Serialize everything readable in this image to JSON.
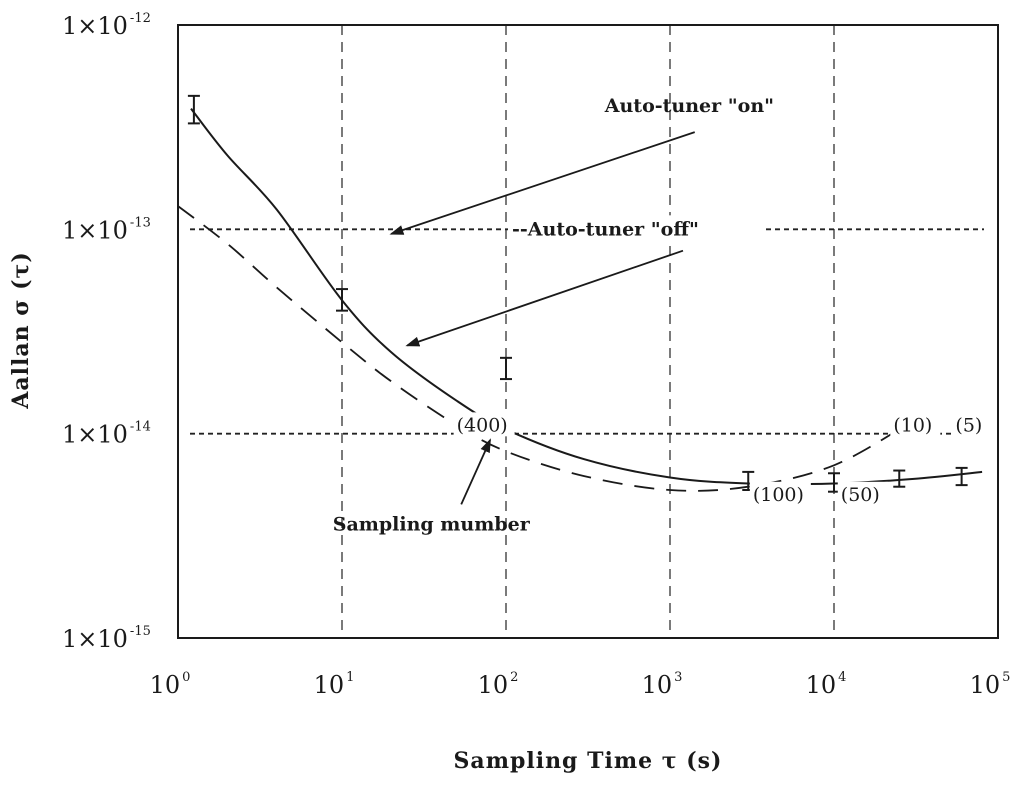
{
  "chart_data": {
    "type": "line",
    "title": "",
    "xlabel": "Sampling Time  τ (s)",
    "ylabel": "Aallan σ (τ)",
    "x_scale": "log",
    "y_scale": "log",
    "xlim": [
      1,
      100000
    ],
    "ylim": [
      1e-15,
      1e-12
    ],
    "x_ticks": [
      {
        "value": 1,
        "mant": "10",
        "exp": "0"
      },
      {
        "value": 10,
        "mant": "10",
        "exp": "1"
      },
      {
        "value": 100,
        "mant": "10",
        "exp": "2"
      },
      {
        "value": 1000,
        "mant": "10",
        "exp": "3"
      },
      {
        "value": 10000,
        "mant": "10",
        "exp": "4"
      },
      {
        "value": 100000,
        "mant": "10",
        "exp": "5"
      }
    ],
    "y_ticks": [
      {
        "value": 1e-12,
        "mant": "1×10",
        "exp": "-12"
      },
      {
        "value": 1e-13,
        "mant": "1×10",
        "exp": "-13"
      },
      {
        "value": 1e-14,
        "mant": "1×10",
        "exp": "-14"
      },
      {
        "value": 1e-15,
        "mant": "1×10",
        "exp": "-15"
      }
    ],
    "vertical_grid_x": [
      10,
      100,
      1000,
      10000
    ],
    "horizontal_ref_y": [
      1e-13,
      1e-14
    ],
    "series": [
      {
        "style": "solid",
        "x": [
          1.2,
          2,
          4,
          10,
          20,
          50,
          100,
          300,
          1000,
          3000,
          10000,
          30000,
          80000
        ],
        "y": [
          3.9e-13,
          2.3e-13,
          1.25e-13,
          4.5e-14,
          2.5e-14,
          1.45e-14,
          1.05e-14,
          7.5e-15,
          6.1e-15,
          5.7e-15,
          5.7e-15,
          6e-15,
          6.5e-15
        ]
      },
      {
        "style": "dashed",
        "x": [
          1,
          2,
          4,
          10,
          20,
          50,
          100,
          300,
          1000,
          3000,
          10000,
          30000
        ],
        "y": [
          1.3e-13,
          8.5e-14,
          5.2e-14,
          2.8e-14,
          1.8e-14,
          1.1e-14,
          8.2e-15,
          6.2e-15,
          5.3e-15,
          5.5e-15,
          7e-15,
          1.15e-14
        ]
      }
    ],
    "error_bars": [
      {
        "x": 1.25,
        "y": 3.9e-13,
        "lo": 3.3e-13,
        "hi": 4.5e-13
      },
      {
        "x": 10,
        "y": 4.5e-14,
        "lo": 4e-14,
        "hi": 5.1e-14
      },
      {
        "x": 100,
        "y": 2.1e-14,
        "lo": 1.85e-14,
        "hi": 2.35e-14
      },
      {
        "x": 3000,
        "y": 5.9e-15,
        "lo": 5.3e-15,
        "hi": 6.5e-15
      },
      {
        "x": 10000,
        "y": 5.8e-15,
        "lo": 5.2e-15,
        "hi": 6.4e-15
      },
      {
        "x": 25000,
        "y": 6e-15,
        "lo": 5.5e-15,
        "hi": 6.6e-15
      },
      {
        "x": 60000,
        "y": 6.2e-15,
        "lo": 5.6e-15,
        "hi": 6.8e-15
      }
    ],
    "annotations": [
      {
        "text": "Auto-tuner \"on\"",
        "x": 400,
        "y": 3.5e-13,
        "arrow_to": {
          "x": 20,
          "y": 9.5e-14
        }
      },
      {
        "text": "--Auto-tuner \"off\"",
        "x": 100,
        "y": 1e-13,
        "arrow_from": {
          "x": 1200,
          "y": 9e-14
        },
        "arrow_to": {
          "x": 25,
          "y": 2.7e-14
        }
      },
      {
        "text": "Sampling mumber",
        "x": 35,
        "y": 3.6e-15,
        "arrow_to": {
          "x": 80,
          "y": 9.3e-15
        }
      }
    ],
    "sample_labels": [
      {
        "text": "(400)",
        "x": 50,
        "y": 1.05e-14
      },
      {
        "text": "(100)",
        "x": 3200,
        "y": 4.8e-15
      },
      {
        "text": "(50)",
        "x": 11000,
        "y": 4.8e-15
      },
      {
        "text": "(10)",
        "x": 23000,
        "y": 1.05e-14
      },
      {
        "text": "(5)",
        "x": 55000,
        "y": 1.05e-14
      }
    ]
  }
}
